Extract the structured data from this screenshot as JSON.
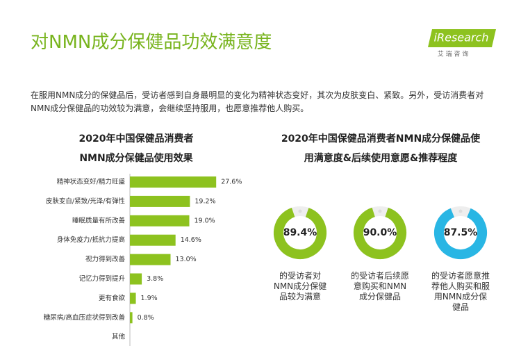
{
  "header": {
    "title": "对NMN成分保健品功效满意度",
    "logo": "iResearch",
    "logo_sub": "艾 瑞 咨 询",
    "description": "在服用NMN成分的保健品后，受访者感到自身最明显的变化为精神状态变好，其次为皮肤变白、紧致。另外，受访消费者对NMN成分保健品的功效较为满意，会继续坚持服用，也愿意推荐他人购买。"
  },
  "chart_data": [
    {
      "type": "bar",
      "orientation": "horizontal",
      "title": [
        "2020年中国保健品消费者",
        "NMN成分保健品使用效果"
      ],
      "categories": [
        "精神状态变好/精力旺盛",
        "皮肤变白/紧致/光泽/有弹性",
        "睡眠质量有所改善",
        "身体免疫力/抵抗力提高",
        "视力得到改善",
        "记忆力得到提升",
        "更有食欲",
        "糖尿病/高血压症状得到改善",
        "其他"
      ],
      "values": [
        27.6,
        19.2,
        19.0,
        14.6,
        13.0,
        3.8,
        1.9,
        0.8,
        null
      ],
      "value_labels": [
        "27.6%",
        "19.2%",
        "19.0%",
        "14.6%",
        "13.0%",
        "3.8%",
        "1.9%",
        "0.8%",
        null
      ],
      "color": "#8dc21f"
    },
    {
      "type": "donut",
      "title": [
        "2020年中国保健品消费者NMN成分保健品使",
        "用满意度&后续使用意愿&推荐程度"
      ],
      "values": [
        89.4,
        90.0,
        87.5
      ],
      "value_labels": [
        "89.4%",
        "90.0%",
        "87.5%"
      ],
      "labels": [
        "的受访者对NMN成分保健品较为满意",
        "的受访者后续愿意购买和NMN成分保健品",
        "的受访者愿意推荐他人购买和服用NMN成分保健品"
      ],
      "colors": [
        "#8dc21f",
        "#8dc21f",
        "#29b6e4"
      ]
    }
  ]
}
